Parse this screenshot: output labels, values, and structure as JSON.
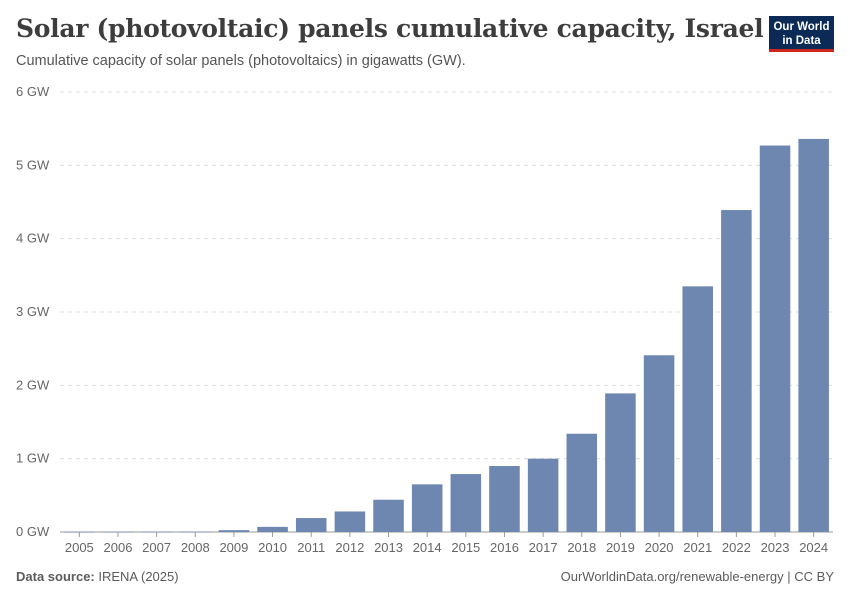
{
  "header": {
    "title": "Solar (photovoltaic) panels cumulative capacity, Israel",
    "subtitle": "Cumulative capacity of solar panels (photovoltaics) in gigawatts (GW)."
  },
  "logo": {
    "line1": "Our World",
    "line2": "in Data",
    "bg_color": "#0b2a55",
    "accent_color": "#ce261e"
  },
  "footer": {
    "source_label": "Data source:",
    "source_value": "IRENA (2025)",
    "right_text": "OurWorldinData.org/renewable-energy | CC BY"
  },
  "chart_data": {
    "type": "bar",
    "categories": [
      "2005",
      "2006",
      "2007",
      "2008",
      "2009",
      "2010",
      "2011",
      "2012",
      "2013",
      "2014",
      "2015",
      "2016",
      "2017",
      "2018",
      "2019",
      "2020",
      "2021",
      "2022",
      "2023",
      "2024"
    ],
    "values": [
      0.001,
      0.002,
      0.003,
      0.003,
      0.025,
      0.07,
      0.19,
      0.28,
      0.44,
      0.65,
      0.79,
      0.9,
      1.0,
      1.34,
      1.89,
      2.41,
      3.35,
      4.39,
      5.27,
      5.36
    ],
    "ylim": [
      0,
      6
    ],
    "yticks": [
      "0 GW",
      "1 GW",
      "2 GW",
      "3 GW",
      "4 GW",
      "5 GW",
      "6 GW"
    ],
    "bar_color": "#6d87b1",
    "grid": true
  }
}
